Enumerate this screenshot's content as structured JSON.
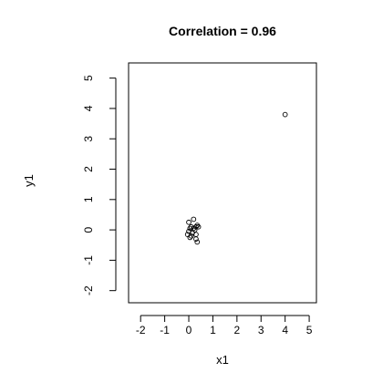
{
  "chart_data": {
    "type": "scatter",
    "title": "Correlation =  0.96",
    "xlabel": "x1",
    "ylabel": "y1",
    "xlim": [
      -2.5,
      5.3
    ],
    "ylim": [
      -2.4,
      5.5
    ],
    "x_ticks": [
      -2,
      -1,
      0,
      1,
      2,
      3,
      4,
      5
    ],
    "y_ticks": [
      -2,
      -1,
      0,
      1,
      2,
      3,
      4,
      5
    ],
    "grid": false,
    "marker": "open-circle",
    "points": [
      {
        "x": 4.0,
        "y": 3.8
      },
      {
        "x": 0.2,
        "y": 0.35
      },
      {
        "x": 0.0,
        "y": 0.25
      },
      {
        "x": 0.35,
        "y": 0.15
      },
      {
        "x": 0.1,
        "y": 0.1
      },
      {
        "x": 0.3,
        "y": 0.1
      },
      {
        "x": 0.05,
        "y": 0.05
      },
      {
        "x": 0.2,
        "y": 0.05
      },
      {
        "x": 0.4,
        "y": 0.1
      },
      {
        "x": 0.25,
        "y": 0.0
      },
      {
        "x": 0.0,
        "y": -0.05
      },
      {
        "x": 0.15,
        "y": -0.1
      },
      {
        "x": -0.05,
        "y": -0.15
      },
      {
        "x": 0.1,
        "y": -0.2
      },
      {
        "x": 0.3,
        "y": -0.15
      },
      {
        "x": 0.05,
        "y": -0.25
      },
      {
        "x": 0.3,
        "y": -0.3
      },
      {
        "x": 0.35,
        "y": -0.4
      }
    ]
  }
}
